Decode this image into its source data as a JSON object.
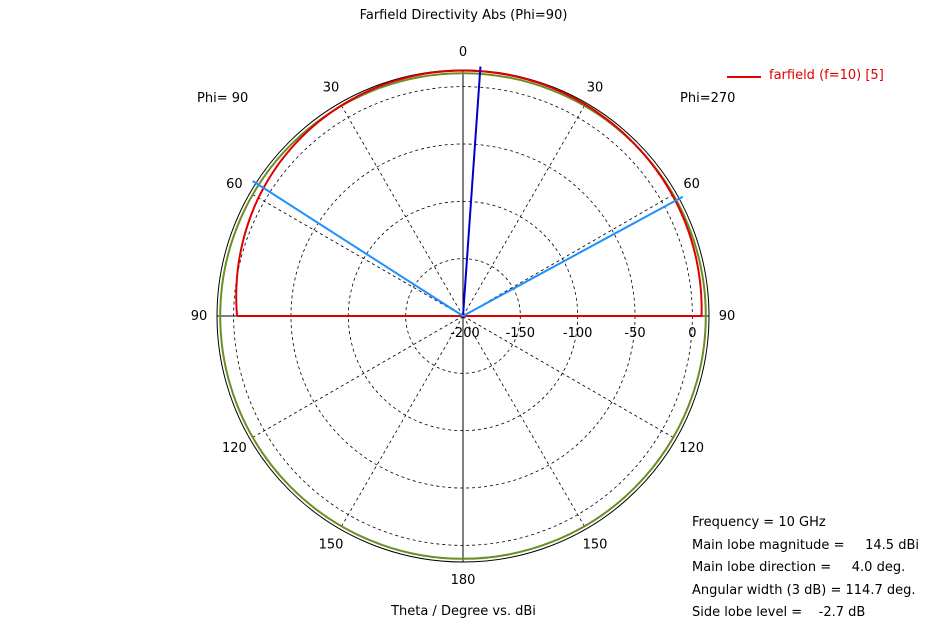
{
  "title": "Farfield Directivity Abs (Phi=90)",
  "xlabel": "Theta / Degree vs. dBi",
  "phi_left_label": "Phi= 90",
  "phi_right_label": "Phi=270",
  "legend": {
    "label": "farfield (f=10) [5]",
    "color": "#e00000"
  },
  "info": {
    "frequency": "Frequency = 10 GHz",
    "main_lobe_magnitude": "Main lobe magnitude =     14.5 dBi",
    "main_lobe_direction": "Main lobe direction =     4.0 deg.",
    "angular_width": "Angular width (3 dB) = 114.7 deg.",
    "side_lobe_level": "Side lobe level =    -2.7 dB"
  },
  "chart_data": {
    "type": "polar",
    "title": "Farfield Directivity Abs (Phi=90)",
    "xlabel": "Theta / Degree vs. dBi",
    "radial_range": [
      -200,
      14.5
    ],
    "radial_ticks": [
      -200,
      -150,
      -100,
      -50,
      0
    ],
    "radial_tick_labels": [
      "-200",
      "-150",
      "-100",
      "-50",
      "0"
    ],
    "angle_ticks": [
      0,
      30,
      60,
      90,
      120,
      150,
      180,
      150,
      120,
      90,
      60,
      30
    ],
    "angle_tick_labels": [
      "0",
      "30",
      "60",
      "90",
      "120",
      "150",
      "180",
      "150",
      "120",
      "90",
      "60",
      "30"
    ],
    "grid": true,
    "series": [
      {
        "name": "farfield (f=10) [5]",
        "color": "#e00000",
        "theta": [
          0,
          10,
          20,
          30,
          40,
          50,
          60,
          70,
          80,
          90
        ],
        "values_left": [
          14.0,
          13.8,
          13.2,
          12.0,
          10.5,
          8.5,
          6.0,
          3.0,
          0.0,
          -3.0
        ],
        "values_right": [
          14.0,
          13.9,
          13.6,
          13.0,
          12.2,
          11.5,
          10.8,
          10.0,
          9.0,
          8.0
        ]
      },
      {
        "name": "",
        "color": "#6b8e23",
        "theta": [
          0,
          180
        ],
        "values": [
          11.7,
          11.7
        ]
      }
    ],
    "markers": [
      {
        "kind": "main-lobe",
        "theta": 4.0,
        "color": "#0000cc"
      },
      {
        "kind": "3dB-beamwidth-left",
        "theta": -57.3,
        "color": "#1e90ff"
      },
      {
        "kind": "3dB-beamwidth-right",
        "theta": 61.5,
        "color": "#1e90ff"
      }
    ]
  }
}
